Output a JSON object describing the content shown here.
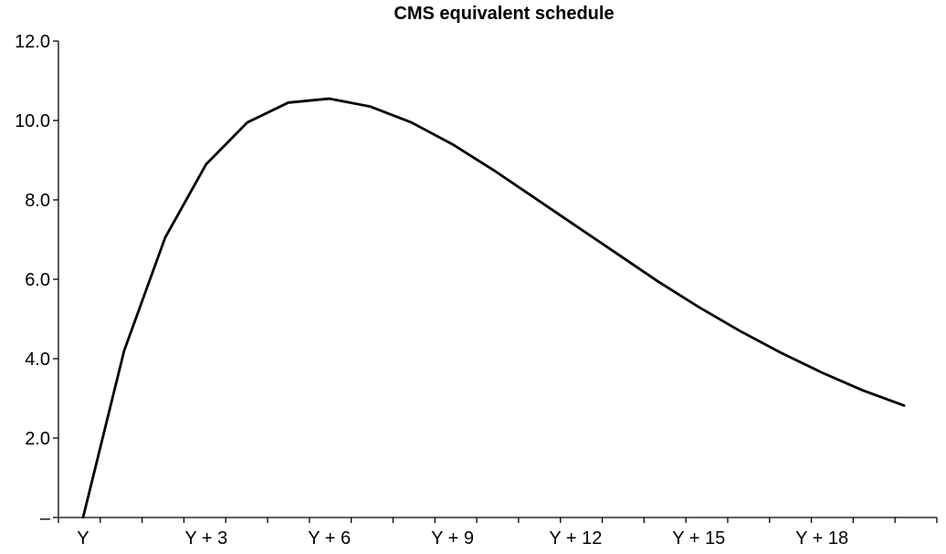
{
  "chart_data": {
    "type": "line",
    "title": "CMS equivalent schedule",
    "xlabel": "",
    "ylabel": "",
    "x": [
      0,
      1,
      2,
      3,
      4,
      5,
      6,
      7,
      8,
      9,
      10,
      11,
      12,
      13,
      14,
      15,
      16,
      17,
      18,
      19,
      20
    ],
    "x_tick_labels": [
      {
        "x": 0,
        "label": "Y"
      },
      {
        "x": 3,
        "label": "Y + 3"
      },
      {
        "x": 6,
        "label": "Y + 6"
      },
      {
        "x": 9,
        "label": "Y + 9"
      },
      {
        "x": 12,
        "label": "Y + 12"
      },
      {
        "x": 15,
        "label": "Y + 15"
      },
      {
        "x": 18,
        "label": "Y + 18"
      }
    ],
    "y_tick_labels": [
      {
        "y": 0,
        "label": "–"
      },
      {
        "y": 2,
        "label": "2.0"
      },
      {
        "y": 4,
        "label": "4.0"
      },
      {
        "y": 6,
        "label": "6.0"
      },
      {
        "y": 8,
        "label": "8.0"
      },
      {
        "y": 10,
        "label": "10.0"
      },
      {
        "y": 12,
        "label": "12.0"
      }
    ],
    "series": [
      {
        "values": [
          0.0,
          4.2,
          7.05,
          8.9,
          9.95,
          10.45,
          10.55,
          10.35,
          9.95,
          9.4,
          8.75,
          8.05,
          7.35,
          6.65,
          5.95,
          5.3,
          4.7,
          4.15,
          3.65,
          3.2,
          2.82
        ]
      }
    ],
    "xlim": [
      -0.6,
      20.8
    ],
    "ylim": [
      0,
      12
    ],
    "grid": false,
    "legend": "none"
  }
}
